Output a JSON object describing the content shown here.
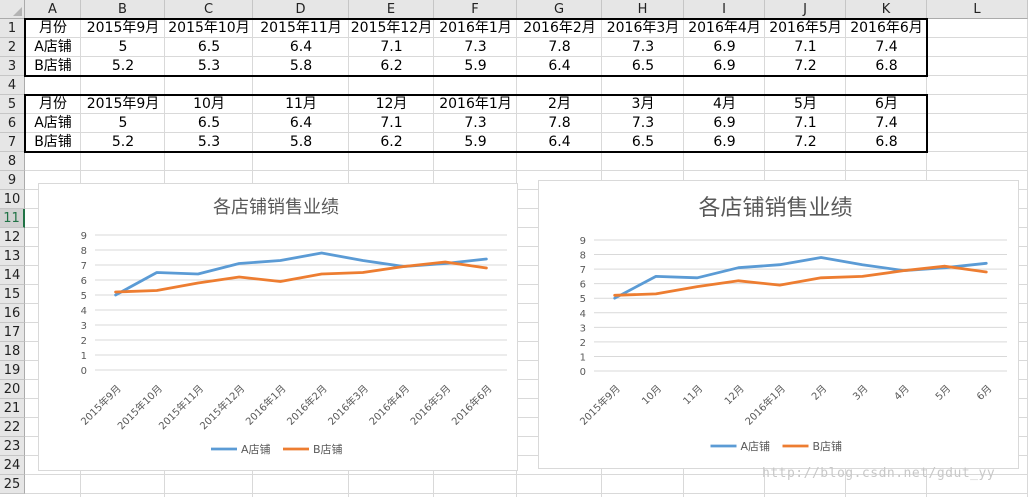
{
  "columns": [
    "A",
    "B",
    "C",
    "D",
    "E",
    "F",
    "G",
    "H",
    "I",
    "J",
    "K",
    "L"
  ],
  "rows": [
    "1",
    "2",
    "3",
    "4",
    "5",
    "6",
    "7",
    "8",
    "9",
    "10",
    "11",
    "12",
    "13",
    "14",
    "15",
    "16",
    "17",
    "18",
    "19",
    "20",
    "21",
    "22",
    "23",
    "24",
    "25"
  ],
  "selected_row": "11",
  "table1": {
    "header": [
      "月份",
      "2015年9月",
      "2015年10月",
      "2015年11月",
      "2015年12月",
      "2016年1月",
      "2016年2月",
      "2016年3月",
      "2016年4月",
      "2016年5月",
      "2016年6月"
    ],
    "rows": [
      [
        "A店铺",
        "5",
        "6.5",
        "6.4",
        "7.1",
        "7.3",
        "7.8",
        "7.3",
        "6.9",
        "7.1",
        "7.4"
      ],
      [
        "B店铺",
        "5.2",
        "5.3",
        "5.8",
        "6.2",
        "5.9",
        "6.4",
        "6.5",
        "6.9",
        "7.2",
        "6.8"
      ]
    ]
  },
  "table2": {
    "header": [
      "月份",
      "2015年9月",
      "10月",
      "11月",
      "12月",
      "2016年1月",
      "2月",
      "3月",
      "4月",
      "5月",
      "6月"
    ],
    "rows": [
      [
        "A店铺",
        "5",
        "6.5",
        "6.4",
        "7.1",
        "7.3",
        "7.8",
        "7.3",
        "6.9",
        "7.1",
        "7.4"
      ],
      [
        "B店铺",
        "5.2",
        "5.3",
        "5.8",
        "6.2",
        "5.9",
        "6.4",
        "6.5",
        "6.9",
        "7.2",
        "6.8"
      ]
    ]
  },
  "colors": {
    "seriesA": "#5b9bd5",
    "seriesB": "#ed7d31",
    "gridline": "#d9d9d9",
    "axisText": "#595959"
  },
  "watermark": "http://blog.csdn.net/gdut_yy",
  "chart_data": [
    {
      "type": "line",
      "title": "各店铺销售业绩",
      "categories": [
        "2015年9月",
        "2015年10月",
        "2015年11月",
        "2015年12月",
        "2016年1月",
        "2016年2月",
        "2016年3月",
        "2016年4月",
        "2016年5月",
        "2016年6月"
      ],
      "series": [
        {
          "name": "A店铺",
          "values": [
            5,
            6.5,
            6.4,
            7.1,
            7.3,
            7.8,
            7.3,
            6.9,
            7.1,
            7.4
          ]
        },
        {
          "name": "B店铺",
          "values": [
            5.2,
            5.3,
            5.8,
            6.2,
            5.9,
            6.4,
            6.5,
            6.9,
            7.2,
            6.8
          ]
        }
      ],
      "ylim": [
        0,
        9
      ],
      "yticks": [
        "0",
        "1",
        "2",
        "3",
        "4",
        "5",
        "6",
        "7",
        "8",
        "9"
      ],
      "grid": true,
      "legend": "bottom"
    },
    {
      "type": "line",
      "title": "各店铺销售业绩",
      "categories": [
        "2015年9月",
        "10月",
        "11月",
        "12月",
        "2016年1月",
        "2月",
        "3月",
        "4月",
        "5月",
        "6月"
      ],
      "series": [
        {
          "name": "A店铺",
          "values": [
            5,
            6.5,
            6.4,
            7.1,
            7.3,
            7.8,
            7.3,
            6.9,
            7.1,
            7.4
          ]
        },
        {
          "name": "B店铺",
          "values": [
            5.2,
            5.3,
            5.8,
            6.2,
            5.9,
            6.4,
            6.5,
            6.9,
            7.2,
            6.8
          ]
        }
      ],
      "ylim": [
        0,
        9
      ],
      "yticks": [
        "0",
        "1",
        "2",
        "3",
        "4",
        "5",
        "6",
        "7",
        "8",
        "9"
      ],
      "grid": true,
      "legend": "bottom"
    }
  ]
}
